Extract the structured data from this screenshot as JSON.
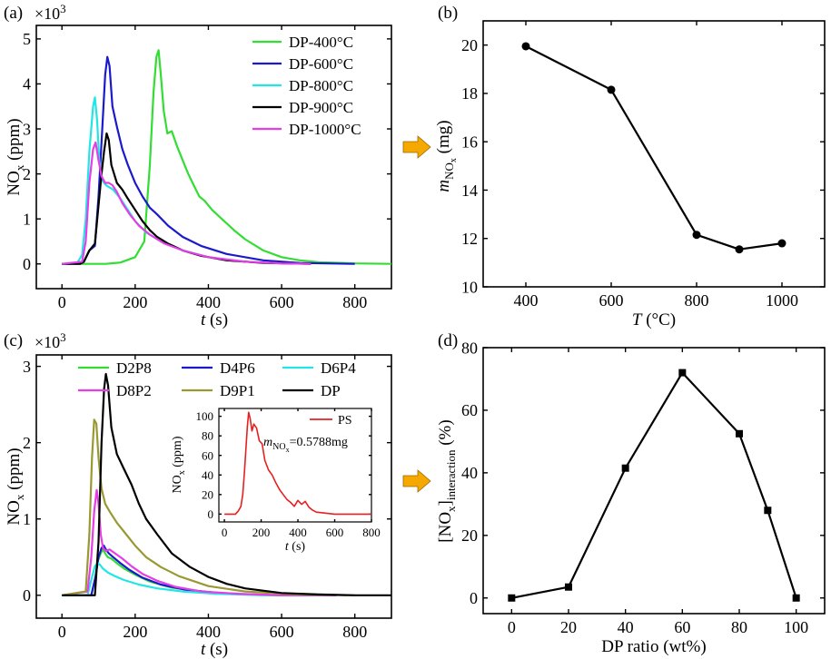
{
  "chart_data": [
    {
      "id": "a",
      "panel_label": "(a)",
      "type": "line",
      "scale_label": "×10",
      "scale_exp": "3",
      "ylabel_main": "NO",
      "ylabel_sub": "x",
      "ylabel_unit": " (ppm)",
      "xlabel_var": "t",
      "xlabel_unit": " (s)",
      "xlim": [
        -70,
        900
      ],
      "ylim": [
        -0.55,
        5.3
      ],
      "xticks": [
        0,
        200,
        400,
        600,
        800
      ],
      "yticks": [
        0,
        1,
        2,
        3,
        4,
        5
      ],
      "series": [
        {
          "name": "DP-400°C",
          "color": "#33dd33",
          "x": [
            0,
            120,
            160,
            200,
            225,
            240,
            250,
            258,
            264,
            270,
            278,
            288,
            300,
            315,
            330,
            345,
            360,
            375,
            390,
            410,
            430,
            450,
            470,
            500,
            550,
            600,
            650,
            700,
            800,
            900
          ],
          "y": [
            0,
            0,
            0.03,
            0.15,
            0.5,
            2.2,
            3.8,
            4.6,
            4.75,
            4.2,
            3.4,
            2.9,
            2.95,
            2.6,
            2.3,
            2.0,
            1.75,
            1.5,
            1.4,
            1.2,
            1.05,
            0.9,
            0.75,
            0.55,
            0.3,
            0.15,
            0.08,
            0.04,
            0.01,
            0
          ]
        },
        {
          "name": "DP-600°C",
          "color": "#1a1acc",
          "x": [
            0,
            45,
            60,
            75,
            90,
            100,
            110,
            118,
            124,
            130,
            138,
            150,
            165,
            180,
            200,
            220,
            240,
            260,
            290,
            330,
            380,
            450,
            550,
            650,
            800
          ],
          "y": [
            0,
            0,
            0.05,
            0.3,
            0.4,
            1.5,
            3.0,
            4.2,
            4.6,
            4.4,
            3.5,
            3.05,
            2.55,
            2.2,
            1.8,
            1.5,
            1.25,
            1.1,
            0.85,
            0.6,
            0.4,
            0.22,
            0.08,
            0.02,
            0
          ]
        },
        {
          "name": "DP-800°C",
          "color": "#22e5e5",
          "x": [
            0,
            40,
            55,
            65,
            75,
            85,
            90,
            96,
            102,
            110,
            120,
            140,
            160,
            180,
            200,
            230,
            270,
            330,
            400,
            500,
            600,
            680
          ],
          "y": [
            0,
            0,
            0.2,
            1.0,
            2.5,
            3.5,
            3.7,
            3.2,
            2.3,
            1.85,
            1.75,
            1.65,
            1.45,
            1.2,
            0.95,
            0.7,
            0.5,
            0.3,
            0.15,
            0.05,
            0.01,
            0
          ]
        },
        {
          "name": "DP-900°C",
          "color": "#000000",
          "x": [
            0,
            50,
            60,
            75,
            90,
            100,
            108,
            115,
            122,
            128,
            135,
            150,
            165,
            180,
            200,
            220,
            240,
            260,
            290,
            330,
            380,
            450,
            550,
            680
          ],
          "y": [
            0,
            0,
            0.05,
            0.3,
            0.45,
            1.3,
            2.0,
            2.5,
            2.9,
            2.75,
            2.2,
            1.8,
            1.65,
            1.45,
            1.2,
            0.95,
            0.75,
            0.6,
            0.45,
            0.3,
            0.18,
            0.08,
            0.02,
            0
          ]
        },
        {
          "name": "DP-1000°C",
          "color": "#e63ee6",
          "x": [
            0,
            55,
            65,
            75,
            85,
            92,
            100,
            108,
            118,
            128,
            138,
            150,
            165,
            185,
            210,
            240,
            280,
            330,
            400,
            500,
            600,
            680
          ],
          "y": [
            0,
            0.05,
            0.5,
            1.8,
            2.55,
            2.7,
            2.3,
            1.95,
            1.8,
            1.8,
            1.75,
            1.6,
            1.35,
            1.1,
            0.85,
            0.65,
            0.45,
            0.3,
            0.15,
            0.05,
            0.01,
            0
          ]
        }
      ]
    },
    {
      "id": "b",
      "panel_label": "(b)",
      "type": "line",
      "ylabel_main": "m",
      "ylabel_sub_main": "NO",
      "ylabel_sub_sub": "x",
      "ylabel_unit": " (mg)",
      "xlabel_var": "T",
      "xlabel_unit": " (°C)",
      "xlim": [
        300,
        1100
      ],
      "ylim": [
        10,
        21
      ],
      "xticks": [
        400,
        600,
        800,
        1000
      ],
      "yticks": [
        10,
        12,
        14,
        16,
        18,
        20
      ],
      "series": [
        {
          "name": "m_NOx",
          "color": "#000000",
          "marker": "circle",
          "x": [
            400,
            600,
            800,
            900,
            1000
          ],
          "y": [
            19.95,
            18.15,
            12.15,
            11.55,
            11.8
          ]
        }
      ]
    },
    {
      "id": "c",
      "panel_label": "(c)",
      "type": "line",
      "scale_label": "×10",
      "scale_exp": "3",
      "ylabel_main": "NO",
      "ylabel_sub": "x",
      "ylabel_unit": " (ppm)",
      "xlabel_var": "t",
      "xlabel_unit": " (s)",
      "xlim": [
        -70,
        900
      ],
      "ylim": [
        -0.3,
        3.15
      ],
      "xticks": [
        0,
        200,
        400,
        600,
        800
      ],
      "yticks": [
        0,
        1,
        2,
        3
      ],
      "series": [
        {
          "name": "D2P8",
          "color": "#33dd33",
          "x": [
            0,
            80,
            90,
            98,
            106,
            112,
            118,
            125,
            135,
            150,
            170,
            200,
            240,
            300,
            400,
            500,
            600,
            700
          ],
          "y": [
            0,
            0,
            0.2,
            0.45,
            0.55,
            0.6,
            0.55,
            0.5,
            0.48,
            0.42,
            0.35,
            0.27,
            0.18,
            0.1,
            0.04,
            0.01,
            0,
            0
          ]
        },
        {
          "name": "D4P6",
          "color": "#1a1acc",
          "x": [
            0,
            80,
            92,
            100,
            108,
            114,
            120,
            128,
            140,
            160,
            185,
            220,
            270,
            340,
            450,
            600,
            750
          ],
          "y": [
            0,
            0,
            0.25,
            0.5,
            0.62,
            0.65,
            0.6,
            0.55,
            0.5,
            0.42,
            0.33,
            0.23,
            0.14,
            0.07,
            0.02,
            0,
            0
          ]
        },
        {
          "name": "D6P4",
          "color": "#22e5e5",
          "x": [
            0,
            70,
            80,
            90,
            98,
            104,
            112,
            125,
            145,
            170,
            210,
            260,
            330,
            420,
            550,
            700
          ],
          "y": [
            0,
            0,
            0.2,
            0.38,
            0.42,
            0.4,
            0.35,
            0.3,
            0.25,
            0.2,
            0.14,
            0.09,
            0.05,
            0.02,
            0,
            0
          ]
        },
        {
          "name": "D8P2",
          "color": "#e63ee6",
          "x": [
            0,
            70,
            80,
            88,
            95,
            100,
            106,
            112,
            120,
            130,
            145,
            165,
            190,
            220,
            260,
            310,
            380,
            480,
            600,
            750
          ],
          "y": [
            0,
            0.05,
            0.5,
            1.1,
            1.38,
            1.2,
            0.8,
            0.62,
            0.58,
            0.6,
            0.55,
            0.48,
            0.38,
            0.28,
            0.19,
            0.11,
            0.05,
            0.02,
            0,
            0
          ]
        },
        {
          "name": "D9P1",
          "color": "#999933",
          "x": [
            0,
            65,
            75,
            82,
            88,
            94,
            100,
            108,
            118,
            130,
            150,
            175,
            200,
            230,
            270,
            320,
            400,
            500,
            650,
            800
          ],
          "y": [
            0,
            0.05,
            0.8,
            1.8,
            2.3,
            2.25,
            1.8,
            1.4,
            1.2,
            1.1,
            0.95,
            0.8,
            0.65,
            0.5,
            0.37,
            0.25,
            0.12,
            0.05,
            0.01,
            0
          ]
        },
        {
          "name": "DP",
          "color": "#000000",
          "x": [
            0,
            90,
            100,
            108,
            115,
            120,
            126,
            135,
            150,
            170,
            190,
            210,
            230,
            260,
            300,
            350,
            400,
            450,
            500,
            600,
            700,
            800,
            900
          ],
          "y": [
            0,
            0,
            0.7,
            2.0,
            2.7,
            2.9,
            2.75,
            2.2,
            1.85,
            1.65,
            1.45,
            1.2,
            1.0,
            0.8,
            0.55,
            0.37,
            0.24,
            0.15,
            0.09,
            0.03,
            0.01,
            0,
            0
          ]
        }
      ]
    },
    {
      "id": "c-inset",
      "type": "line",
      "ylabel_main": "NO",
      "ylabel_sub": "x",
      "ylabel_unit": " (ppm)",
      "xlabel_var": "t",
      "xlabel_unit": " (s)",
      "annot_main": "m",
      "annot_sub1": "NO",
      "annot_sub2": "x",
      "annot_value": "=0.5788mg",
      "xlim": [
        -30,
        800
      ],
      "ylim": [
        -8,
        108
      ],
      "xticks": [
        0,
        200,
        400,
        600,
        800
      ],
      "yticks": [
        0,
        20,
        40,
        60,
        80,
        100
      ],
      "series": [
        {
          "name": "PS",
          "color": "#e62020",
          "x": [
            0,
            60,
            75,
            90,
            100,
            110,
            118,
            125,
            132,
            140,
            150,
            160,
            175,
            190,
            205,
            220,
            240,
            260,
            280,
            300,
            320,
            340,
            360,
            380,
            400,
            420,
            440,
            460,
            480,
            500,
            550,
            600,
            650,
            700,
            800
          ],
          "y": [
            0,
            0,
            3,
            8,
            20,
            45,
            70,
            90,
            104,
            98,
            85,
            92,
            88,
            75,
            72,
            55,
            45,
            40,
            32,
            25,
            20,
            15,
            12,
            8,
            14,
            10,
            13,
            7,
            4,
            2,
            1,
            0,
            0,
            0,
            0
          ]
        }
      ]
    },
    {
      "id": "d",
      "panel_label": "(d)",
      "type": "line",
      "ylabel_main": "[NO",
      "ylabel_sub1": "x",
      "ylabel_mid": "]",
      "ylabel_sub2": "interaction",
      "ylabel_unit": " (%)",
      "xlabel": "DP ratio (wt%)",
      "xlim": [
        -10,
        110
      ],
      "ylim": [
        -5,
        80
      ],
      "xticks": [
        0,
        20,
        40,
        60,
        80,
        100
      ],
      "yticks": [
        0,
        20,
        40,
        60,
        80
      ],
      "series": [
        {
          "name": "interaction",
          "color": "#000000",
          "marker": "square",
          "x": [
            0,
            20,
            40,
            60,
            80,
            90,
            100
          ],
          "y": [
            0,
            3.5,
            41.5,
            72,
            52.5,
            28,
            0
          ]
        }
      ]
    }
  ],
  "arrow_color": "#f5a800"
}
